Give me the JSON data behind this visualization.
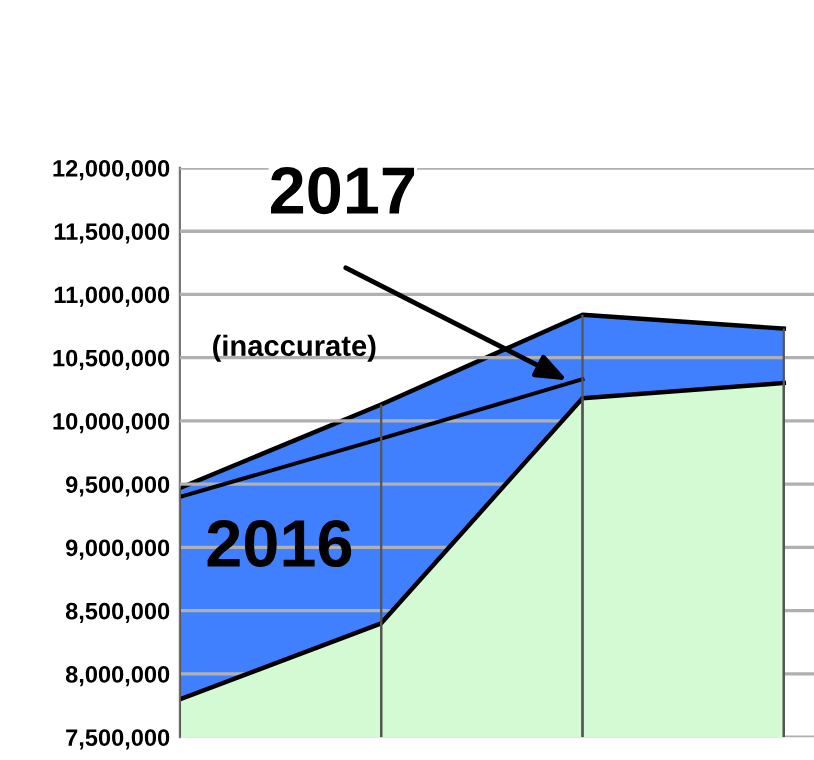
{
  "chart_data": {
    "type": "area",
    "categories": [
      null,
      null,
      null,
      null
    ],
    "series": [
      {
        "color": "#4080ff",
        "values": [
          9470000,
          10130000,
          10840000,
          10730000
        ]
      },
      {
        "color": "#d4fad4",
        "values": [
          7800000,
          8400000,
          10180000,
          10300000
        ]
      },
      {
        "type": "line",
        "color": "#000000",
        "values": [
          9400000,
          9860000,
          10330000,
          null
        ]
      }
    ],
    "annotations": [
      "2017",
      "(inaccurate)",
      "2016"
    ],
    "ylim": [
      7500000,
      12000000
    ],
    "yticks": [
      {
        "value": 7500000,
        "label": "7,500,000"
      },
      {
        "value": 8000000,
        "label": "8,000,000"
      },
      {
        "value": 8500000,
        "label": "8,500,000"
      },
      {
        "value": 9000000,
        "label": "9,000,000"
      },
      {
        "value": 9500000,
        "label": "9,500,000"
      },
      {
        "value": 10000000,
        "label": "10,000,000"
      },
      {
        "value": 10500000,
        "label": "10,500,000"
      },
      {
        "value": 11000000,
        "label": "11,000,000"
      },
      {
        "value": 11500000,
        "label": "11,500,000"
      },
      {
        "value": 12000000,
        "label": "12,000,000"
      }
    ],
    "grid": true,
    "tick_labels": "y"
  }
}
